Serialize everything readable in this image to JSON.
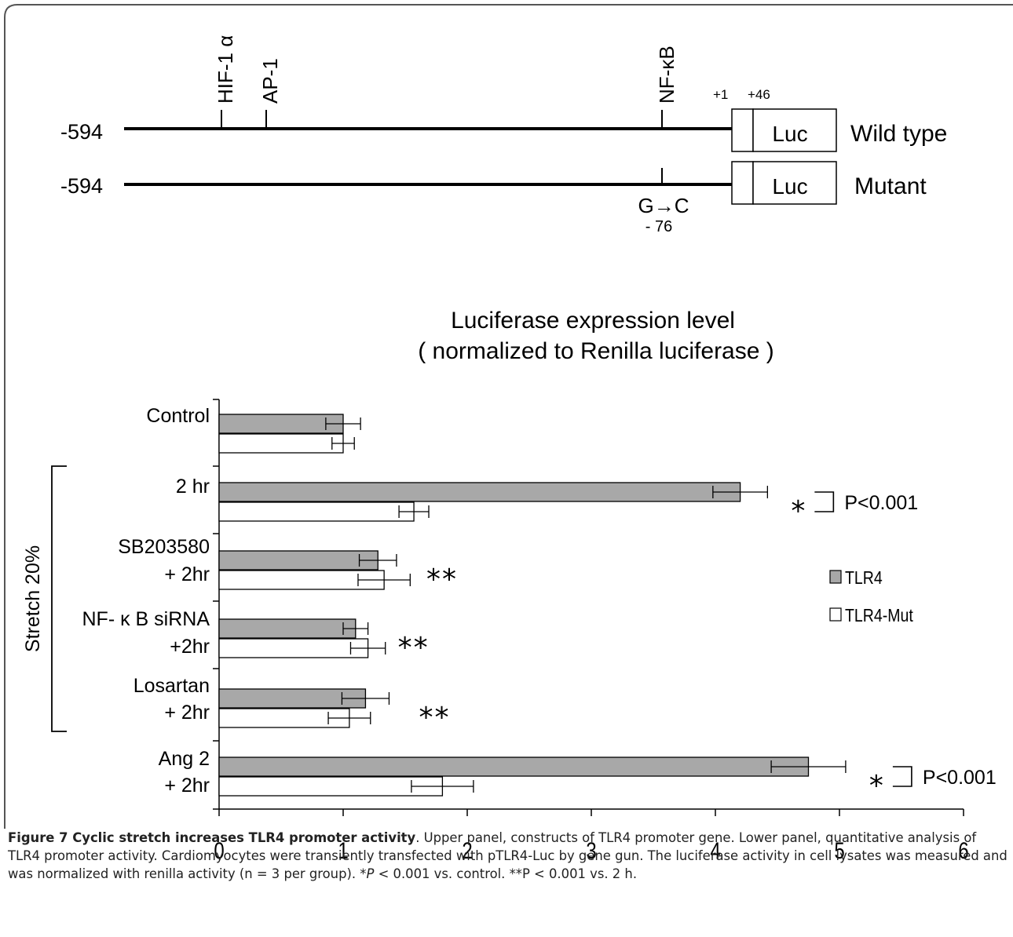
{
  "promoter_diagram": {
    "sites": [
      "HIF-1 α",
      "AP-1",
      "NF-κB"
    ],
    "positions": [
      "+1",
      "+46"
    ],
    "constructs": [
      {
        "start": "-594",
        "box": "Luc",
        "label": "Wild type"
      },
      {
        "start": "-594",
        "box": "Luc",
        "label": "Mutant"
      }
    ],
    "mutation": {
      "change": "G→C",
      "position": "- 76"
    }
  },
  "chart_data": {
    "type": "bar",
    "orientation": "horizontal",
    "title": "Luciferase expression level",
    "subtitle": "( normalized to Renilla luciferase )",
    "xlim": [
      0,
      6
    ],
    "x_ticks": [
      "0",
      "1",
      "2",
      "3",
      "4",
      "5",
      "6"
    ],
    "bracket_label": "Stretch 20%",
    "bracket_groups": [
      "2 hr",
      "SB203580\n+ 2hr",
      "NF- κ B siRNA\n+2hr",
      "Losartan\n+ 2hr"
    ],
    "categories": [
      {
        "line1": "Control",
        "line2": ""
      },
      {
        "line1": "2 hr",
        "line2": ""
      },
      {
        "line1": "SB203580",
        "line2": "+ 2hr"
      },
      {
        "line1": "NF- κ B siRNA",
        "line2": "+2hr"
      },
      {
        "line1": "Losartan",
        "line2": "+ 2hr"
      },
      {
        "line1": "Ang 2",
        "line2": "+ 2hr"
      }
    ],
    "series": [
      {
        "name": "TLR4",
        "color": "#a8a8a8",
        "values": [
          1.0,
          4.2,
          1.28,
          1.1,
          1.18,
          4.75
        ],
        "errors": [
          0.14,
          0.22,
          0.15,
          0.1,
          0.19,
          0.3
        ]
      },
      {
        "name": "TLR4-Mut",
        "color": "#ffffff",
        "values": [
          1.0,
          1.57,
          1.33,
          1.2,
          1.05,
          1.8
        ],
        "errors": [
          0.09,
          0.12,
          0.21,
          0.14,
          0.17,
          0.25
        ]
      }
    ],
    "annotations": [
      {
        "category": 1,
        "mark": "*",
        "label": "P<0.001"
      },
      {
        "category": 2,
        "mark": "**",
        "label": ""
      },
      {
        "category": 3,
        "mark": "**",
        "label": ""
      },
      {
        "category": 4,
        "mark": "**",
        "label": ""
      },
      {
        "category": 5,
        "mark": "*",
        "label": "P<0.001"
      }
    ]
  },
  "caption": {
    "title": "Figure 7 Cyclic stretch increases TLR4 promoter activity",
    "sentence1": ". Upper panel, constructs of TLR4 promoter gene. Lower panel, quantitative analysis of TLR4 promoter activity. Cardiomyocytes were transiently transfected with pTLR4-Luc by gene gun. The luciferase activity in cell lysates was measured and was normalized with renilla activity (n = 3 per group). *",
    "p1": "P",
    "sentence2": " < 0.001 vs. control. **P < 0.001 vs. 2 h."
  }
}
